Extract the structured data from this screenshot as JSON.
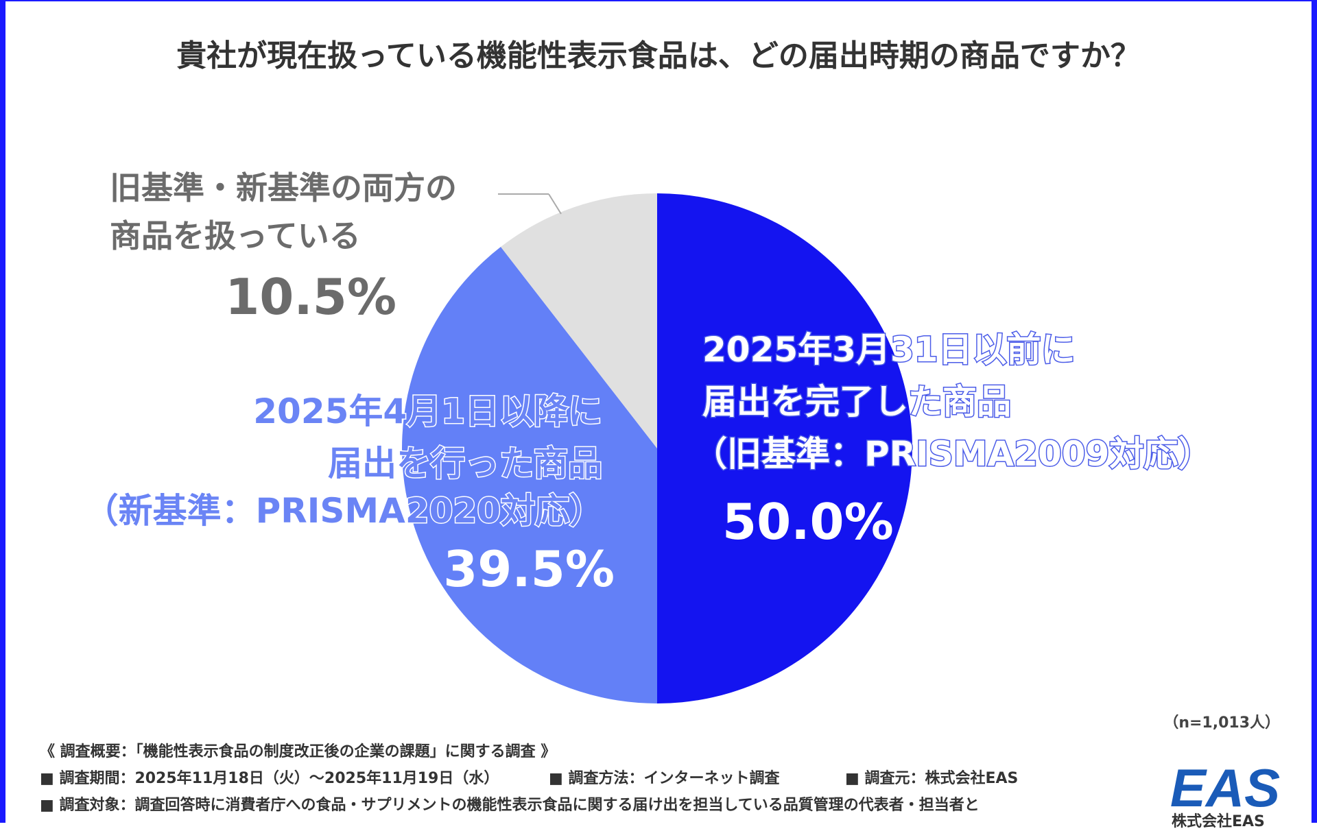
{
  "chart_data": {
    "type": "pie",
    "title": "貴社が現在扱っている機能性表示食品は、どの届出時期の商品ですか？",
    "slices": [
      {
        "label_lines": [
          "2025年3月31日以前に",
          "届出を完了した商品",
          "（旧基準：PRISMA2009対応）"
        ],
        "value": 50.0,
        "value_label": "50.0%",
        "color": "#1414f0"
      },
      {
        "label_lines": [
          "2025年4月1日以降に",
          "届出を行った商品",
          "（新基準：PRISMA2020対応）"
        ],
        "value": 39.5,
        "value_label": "39.5%",
        "color": "#6380f7"
      },
      {
        "label_lines": [
          "旧基準・新基準の両方の",
          "商品を扱っている"
        ],
        "value": 10.5,
        "value_label": "10.5%",
        "color": "#e0e0e0"
      }
    ],
    "legend": "none",
    "sample_size": "（n=1,013人）"
  },
  "footer": {
    "summary": "《 調査概要：「機能性表示食品の制度改正後の企業の課題」に関する調査 》",
    "period": "■ 調査期間：2025年11月18日（火）～2025年11月19日（水）",
    "method": "■ 調査方法：インターネット調査",
    "source": "■ 調査元：株式会社EAS",
    "target": "■ 調査対象：調査回答時に消費者庁への食品・サプリメントの機能性表示食品に関する届け出を担当している品質管理の代表者・担当者と"
  },
  "logo": {
    "text": "EAS",
    "company": "株式会社EAS",
    "color": "#1a5bb8"
  }
}
